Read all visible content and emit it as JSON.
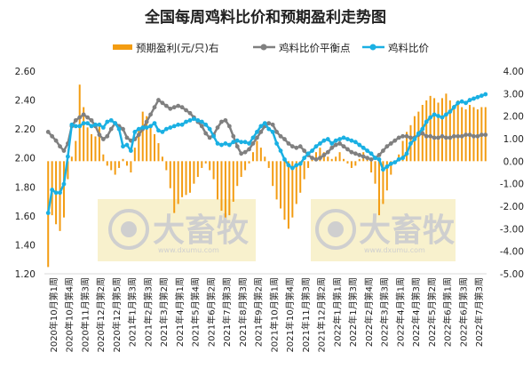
{
  "chart_data": {
    "type": "bar+line",
    "title": "全国每周鸡料比价和预期盈利走势图",
    "legend": [
      "预期盈利(元/只)右",
      "鸡料比价平衡点",
      "鸡料比价"
    ],
    "colors": {
      "profit": "#f39c12",
      "balance": "#808080",
      "ratio": "#1ab0e3"
    },
    "left_axis": {
      "min": 1.2,
      "max": 2.6,
      "ticks": [
        "1.20",
        "1.40",
        "1.60",
        "1.80",
        "2.00",
        "2.20",
        "2.40",
        "2.60"
      ]
    },
    "right_axis": {
      "min": -5,
      "max": 4,
      "ticks": [
        "-5.00",
        "-4.00",
        "-3.00",
        "-2.00",
        "-1.00",
        "0.00",
        "1.00",
        "2.00",
        "3.00",
        "4.00"
      ]
    },
    "x_labels": [
      "2020年10月第1周",
      "2020年10月第4周",
      "2020年11月第3周",
      "2020年12月第2周",
      "2020年12月第5周",
      "2021年1月第3周",
      "2021年2月第3周",
      "2021年3月第2周",
      "2021年4月第1周",
      "2021年5月第4周",
      "2021年6月第2周",
      "2021年7月第3周",
      "2021年8月第3周",
      "2021年9月第2周",
      "2021年10月第1周",
      "2021年10月第4周",
      "2021年11月第3周",
      "2021年12月第2周",
      "2022年1月第1周",
      "2022年1月第3周",
      "2022年2月第4周",
      "2022年3月第3周",
      "2022年4月第1周",
      "2022年4月第3周",
      "2022年5月第2周",
      "2022年6月第1周",
      "2022年6月第3周",
      "2022年7月第3周"
    ],
    "watermark": {
      "text": "大畜牧",
      "url": "www.dxumu.com"
    },
    "series_ratio": [
      1.62,
      1.78,
      1.76,
      1.76,
      1.82,
      2.01,
      2.23,
      2.22,
      2.22,
      2.24,
      2.24,
      2.22,
      2.23,
      2.23,
      2.21,
      2.25,
      2.26,
      2.24,
      2.2,
      2.08,
      2.09,
      2.05,
      2.18,
      2.2,
      2.21,
      2.21,
      2.22,
      2.24,
      2.19,
      2.18,
      2.2,
      2.21,
      2.22,
      2.23,
      2.23,
      2.25,
      2.26,
      2.27,
      2.26,
      2.25,
      2.23,
      2.2,
      2.15,
      2.1,
      2.09,
      2.1,
      2.09,
      2.11,
      2.12,
      2.11,
      2.11,
      2.1,
      2.14,
      2.18,
      2.22,
      2.24,
      2.2,
      2.18,
      2.1,
      2.05,
      1.99,
      1.95,
      1.93,
      1.95,
      1.96,
      2.0,
      2.03,
      2.05,
      2.08,
      2.1,
      2.12,
      2.13,
      2.1,
      2.12,
      2.13,
      2.14,
      2.13,
      2.12,
      2.11,
      2.09,
      2.07,
      2.05,
      2.03,
      2.0,
      1.99,
      1.92,
      1.94,
      1.96,
      1.97,
      1.99,
      2.0,
      2.03,
      2.1,
      2.13,
      2.17,
      2.2,
      2.25,
      2.28,
      2.3,
      2.29,
      2.28,
      2.3,
      2.32,
      2.35,
      2.38,
      2.39,
      2.38,
      2.4,
      2.41,
      2.42,
      2.43,
      2.44
    ],
    "series_balance": [
      2.18,
      2.15,
      2.12,
      2.08,
      2.05,
      2.1,
      2.22,
      2.26,
      2.28,
      2.3,
      2.28,
      2.26,
      2.22,
      2.16,
      2.13,
      2.15,
      2.2,
      2.24,
      2.22,
      2.2,
      2.14,
      2.12,
      2.13,
      2.16,
      2.2,
      2.25,
      2.3,
      2.35,
      2.4,
      2.38,
      2.36,
      2.34,
      2.35,
      2.36,
      2.35,
      2.33,
      2.31,
      2.28,
      2.25,
      2.22,
      2.17,
      2.14,
      2.16,
      2.21,
      2.25,
      2.26,
      2.22,
      2.15,
      2.08,
      2.03,
      2.04,
      2.06,
      2.1,
      2.14,
      2.18,
      2.22,
      2.24,
      2.23,
      2.18,
      2.15,
      2.13,
      2.1,
      2.08,
      2.07,
      2.08,
      2.05,
      2.02,
      2.0,
      1.99,
      2.0,
      2.02,
      2.04,
      2.07,
      2.09,
      2.1,
      2.08,
      2.06,
      2.04,
      2.03,
      2.02,
      2.01,
      2.0,
      1.99,
      2.0,
      2.02,
      2.05,
      2.08,
      2.1,
      2.12,
      2.14,
      2.15,
      2.15,
      2.14,
      2.14,
      2.16,
      2.17,
      2.15,
      2.15,
      2.14,
      2.14,
      2.15,
      2.14,
      2.14,
      2.15,
      2.15,
      2.15,
      2.16,
      2.16,
      2.15,
      2.15,
      2.16,
      2.16
    ],
    "series_profit": [
      -4.7,
      -2.4,
      -2.8,
      -3.1,
      -2.5,
      -0.8,
      0.2,
      0.9,
      3.4,
      2.4,
      1.5,
      1.2,
      1.1,
      1.6,
      0.3,
      -0.2,
      -0.4,
      -0.6,
      -0.3,
      0.1,
      -0.2,
      -0.5,
      0.6,
      1.4,
      2.2,
      2.0,
      1.6,
      1.2,
      0.8,
      0.2,
      -0.4,
      -1.2,
      -2.3,
      -1.9,
      -1.6,
      -1.5,
      -1.4,
      -1.0,
      -0.7,
      -0.3,
      -0.1,
      -0.4,
      -0.8,
      -1.7,
      -2.2,
      -2.5,
      -2.4,
      -1.8,
      -1.1,
      -0.7,
      -0.4,
      -0.1,
      0.4,
      0.9,
      0.6,
      0.2,
      -0.3,
      -1.1,
      -1.7,
      -2.1,
      -2.6,
      -3.0,
      -2.5,
      -1.9,
      -1.4,
      -0.8,
      -0.3,
      0.1,
      0.4,
      0.6,
      0.4,
      0.2,
      0.1,
      0.2,
      0.4,
      0.1,
      -0.1,
      -0.3,
      -0.2,
      0.1,
      0.4,
      0.2,
      -0.5,
      -1.0,
      -2.4,
      -1.9,
      -1.3,
      -0.6,
      -0.1,
      0.3,
      0.9,
      1.3,
      1.6,
      2.0,
      2.2,
      2.5,
      2.7,
      2.9,
      2.8,
      2.6,
      2.8,
      3.0,
      2.7,
      2.5,
      2.7,
      2.4,
      2.3,
      2.5,
      2.4,
      2.3,
      2.4,
      2.4
    ]
  }
}
